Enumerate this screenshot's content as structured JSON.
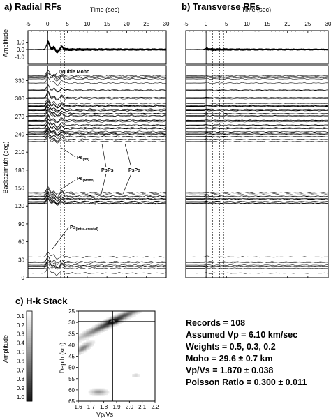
{
  "panels": {
    "radial_title": "a) Radial RFs",
    "transverse_title": "b) Transverse RFs",
    "hk_title": "c) H-k Stack"
  },
  "chart_data": [
    {
      "type": "line",
      "name": "radial-rfs",
      "title": "a) Radial RFs",
      "xlabel": "Time (sec)",
      "ylabel_top": "Amplitude",
      "ylabel": "Backazimuth (deg)",
      "x_ticks": [
        -5,
        0,
        5,
        10,
        15,
        20,
        25,
        30
      ],
      "xlim": [
        -5,
        30
      ],
      "amp_ticks": [
        "1.0",
        "0.0",
        "-1.0"
      ],
      "baz_ticks": [
        0,
        30,
        60,
        90,
        120,
        150,
        180,
        210,
        240,
        270,
        300,
        330
      ],
      "ylim": [
        0,
        355
      ],
      "phase_times": [
        0,
        1.6,
        3.3,
        4.3
      ],
      "annotations": [
        "Double Moho",
        "Ps(ml)",
        "PpPs",
        "PsPs",
        "Ps(Moho)",
        "Ps(intra-crustal)"
      ]
    },
    {
      "type": "line",
      "name": "transverse-rfs",
      "title": "b) Transverse RFs",
      "xlabel": "Time (sec)",
      "x_ticks": [
        -5,
        0,
        5,
        10,
        15,
        20,
        25,
        30
      ],
      "xlim": [
        -5,
        30
      ]
    },
    {
      "type": "heatmap",
      "name": "hk-stack",
      "title": "c) H-k Stack",
      "xlabel": "Vp/Vs",
      "ylabel": "Depth (km)",
      "x_ticks": [
        1.6,
        1.7,
        1.8,
        1.9,
        2.0,
        2.1,
        2.2
      ],
      "y_ticks": [
        25,
        30,
        35,
        40,
        45,
        50,
        55,
        60,
        65
      ],
      "xlim": [
        1.6,
        2.2
      ],
      "ylim": [
        65,
        25
      ],
      "best_depth_km": 29.6,
      "best_vpvs": 1.87,
      "colorbar_label": "Amplitude",
      "colorbar_ticks": [
        "0.1",
        "0.2",
        "0.3",
        "0.4",
        "0.5",
        "0.6",
        "0.7",
        "0.8",
        "0.9",
        "1.0"
      ]
    }
  ],
  "stats": {
    "records": "Records = 108",
    "vp": "Assumed Vp = 6.10 km/sec",
    "weights": "Weights = 0.5, 0.3, 0.2",
    "moho": "Moho = 29.6 ± 0.7 km",
    "vpvs": "Vp/Vs = 1.870 ± 0.038",
    "poisson": "Poisson Ratio = 0.300 ± 0.011"
  },
  "labels": {
    "time_a": "Time (sec)",
    "time_b": "Time (sec)",
    "amplitude": "Amplitude",
    "backazimuth": "Backazimuth (deg)",
    "depth": "Depth (km)",
    "vpvs": "Vp/Vs",
    "cb_amplitude": "Amplitude",
    "double_moho": "Double Moho",
    "ps_ml": "Ps",
    "ps_ml_sub": "(ml)",
    "ps_moho": "Ps",
    "ps_moho_sub": "(Moho)",
    "ps_ic": "Ps",
    "ps_ic_sub": "(intra-crustal)",
    "ppps": "PpPs",
    "psps": "PsPs"
  }
}
